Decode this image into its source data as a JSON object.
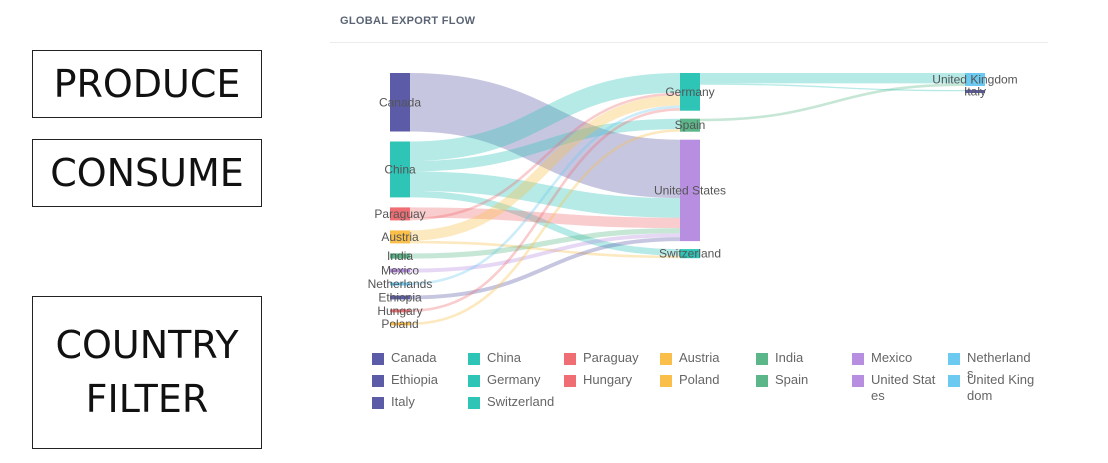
{
  "sidebar": {
    "produce": "PRODUCE",
    "consume": "CONSUME",
    "filter_line1": "COUNTRY",
    "filter_line2": "FILTER"
  },
  "chart_title": "GLOBAL EXPORT FLOW",
  "chart_data": {
    "type": "sankey",
    "title": "GLOBAL EXPORT FLOW",
    "nodes": [
      {
        "name": "Canada",
        "color": "#5b5ba8"
      },
      {
        "name": "China",
        "color": "#2ec4b6"
      },
      {
        "name": "Paraguay",
        "color": "#ee6e73"
      },
      {
        "name": "Austria",
        "color": "#f9bf4a"
      },
      {
        "name": "India",
        "color": "#5bb78a"
      },
      {
        "name": "Mexico",
        "color": "#b78ee0"
      },
      {
        "name": "Netherlands",
        "color": "#6cc9f0"
      },
      {
        "name": "Ethiopia",
        "color": "#5b5ba8"
      },
      {
        "name": "Hungary",
        "color": "#ee6e73"
      },
      {
        "name": "Poland",
        "color": "#f9bf4a"
      },
      {
        "name": "Germany",
        "color": "#2ec4b6"
      },
      {
        "name": "Spain",
        "color": "#5bb78a"
      },
      {
        "name": "United States",
        "color": "#b78ee0"
      },
      {
        "name": "Switzerland",
        "color": "#2ec4b6"
      },
      {
        "name": "United Kingdom",
        "color": "#6cc9f0"
      },
      {
        "name": "Italy",
        "color": "#5b5ba8"
      }
    ],
    "links": [
      {
        "source": "Canada",
        "target": "United States",
        "value": 45
      },
      {
        "source": "China",
        "target": "Germany",
        "value": 15
      },
      {
        "source": "China",
        "target": "Spain",
        "value": 8
      },
      {
        "source": "China",
        "target": "United States",
        "value": 15
      },
      {
        "source": "China",
        "target": "Switzerland",
        "value": 5
      },
      {
        "source": "Paraguay",
        "target": "United States",
        "value": 8
      },
      {
        "source": "Paraguay",
        "target": "Germany",
        "value": 2
      },
      {
        "source": "Austria",
        "target": "Germany",
        "value": 8
      },
      {
        "source": "Austria",
        "target": "Switzerland",
        "value": 2
      },
      {
        "source": "India",
        "target": "United States",
        "value": 4
      },
      {
        "source": "Mexico",
        "target": "United States",
        "value": 3
      },
      {
        "source": "Netherlands",
        "target": "Germany",
        "value": 2
      },
      {
        "source": "Ethiopia",
        "target": "United States",
        "value": 3
      },
      {
        "source": "Hungary",
        "target": "Germany",
        "value": 2
      },
      {
        "source": "Poland",
        "target": "Spain",
        "value": 2
      },
      {
        "source": "Germany",
        "target": "United Kingdom",
        "value": 8
      },
      {
        "source": "Spain",
        "target": "United Kingdom",
        "value": 2
      },
      {
        "source": "Germany",
        "target": "Italy",
        "value": 1
      }
    ]
  },
  "legend": [
    {
      "label": "Canada",
      "color": "#5b5ba8"
    },
    {
      "label": "China",
      "color": "#2ec4b6"
    },
    {
      "label": "Paraguay",
      "color": "#ee6e73"
    },
    {
      "label": "Austria",
      "color": "#f9bf4a"
    },
    {
      "label": "India",
      "color": "#5bb78a"
    },
    {
      "label": "Mexico",
      "color": "#b78ee0"
    },
    {
      "label": "Netherlands",
      "color": "#6cc9f0"
    },
    {
      "label": "Ethiopia",
      "color": "#5b5ba8"
    },
    {
      "label": "Germany",
      "color": "#2ec4b6"
    },
    {
      "label": "Hungary",
      "color": "#ee6e73"
    },
    {
      "label": "Poland",
      "color": "#f9bf4a"
    },
    {
      "label": "Spain",
      "color": "#5bb78a"
    },
    {
      "label": "United States",
      "color": "#b78ee0"
    },
    {
      "label": "United Kingdom",
      "color": "#6cc9f0"
    },
    {
      "label": "Italy",
      "color": "#5b5ba8"
    },
    {
      "label": "Switzerland",
      "color": "#2ec4b6"
    }
  ]
}
